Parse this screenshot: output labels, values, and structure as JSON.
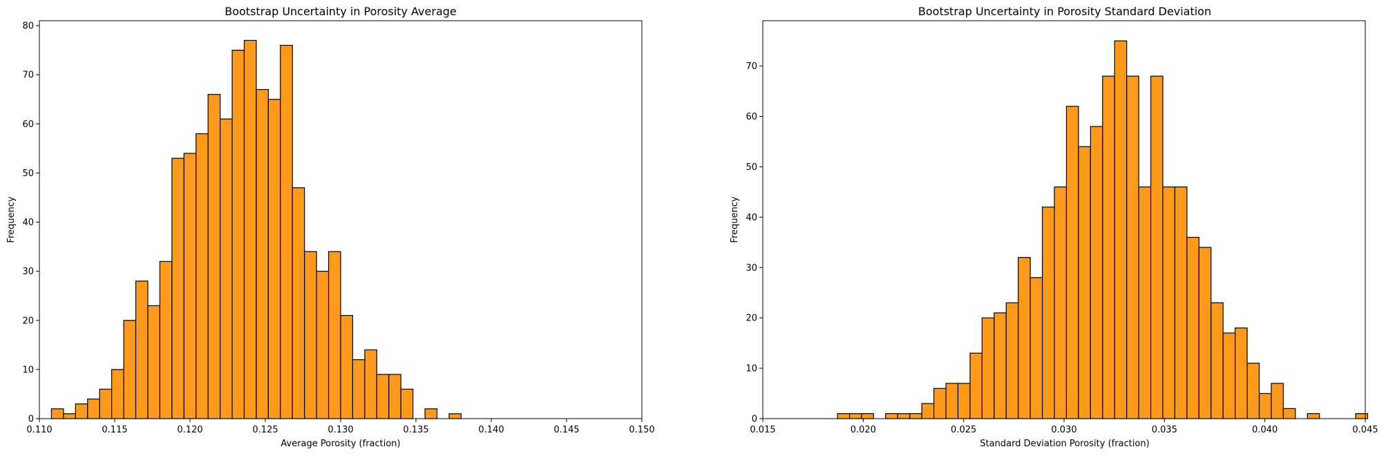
{
  "chart_data": [
    {
      "type": "bar",
      "title": "Bootstrap Uncertainty in Porosity Average",
      "xlabel": "Average Porosity (fraction)",
      "ylabel": "Frequency",
      "xlim": [
        0.11,
        0.15
      ],
      "ylim": [
        0,
        81
      ],
      "xticks": [
        "0.110",
        "0.115",
        "0.120",
        "0.125",
        "0.130",
        "0.135",
        "0.140",
        "0.145",
        "0.150"
      ],
      "xtick_values": [
        0.11,
        0.115,
        0.12,
        0.125,
        0.13,
        0.135,
        0.14,
        0.145,
        0.15
      ],
      "yticks": [
        "0",
        "10",
        "20",
        "30",
        "40",
        "50",
        "60",
        "70",
        "80"
      ],
      "ytick_values": [
        0,
        10,
        20,
        30,
        40,
        50,
        60,
        70,
        80
      ],
      "bar_color": "#fd9a1c",
      "edge_color": "#000000",
      "bins_start": 0.1108,
      "bin_width": 0.0008,
      "values": [
        2,
        1,
        3,
        4,
        6,
        10,
        20,
        28,
        23,
        32,
        53,
        54,
        58,
        66,
        61,
        75,
        77,
        67,
        65,
        76,
        47,
        34,
        30,
        34,
        21,
        12,
        14,
        9,
        9,
        6,
        0,
        2,
        0,
        1
      ]
    },
    {
      "type": "bar",
      "title": "Bootstrap Uncertainty in Porosity Standard Deviation",
      "xlabel": "Standard Deviation Porosity (fraction)",
      "ylabel": "Frequency",
      "xlim": [
        0.015,
        0.045
      ],
      "ylim": [
        0,
        79
      ],
      "xticks": [
        "0.015",
        "0.020",
        "0.025",
        "0.030",
        "0.035",
        "0.040",
        "0.045"
      ],
      "xtick_values": [
        0.015,
        0.02,
        0.025,
        0.03,
        0.035,
        0.04,
        0.045
      ],
      "yticks": [
        "0",
        "10",
        "20",
        "30",
        "40",
        "50",
        "60",
        "70"
      ],
      "ytick_values": [
        0,
        10,
        20,
        30,
        40,
        50,
        60,
        70
      ],
      "bar_color": "#fd9a1c",
      "edge_color": "#000000",
      "bins_start": 0.01872,
      "bin_width": 0.0006,
      "values": [
        1,
        1,
        1,
        0,
        1,
        1,
        1,
        3,
        6,
        7,
        7,
        13,
        20,
        21,
        23,
        32,
        28,
        42,
        46,
        62,
        54,
        58,
        68,
        75,
        68,
        46,
        68,
        46,
        46,
        36,
        34,
        23,
        17,
        18,
        11,
        5,
        7,
        2,
        0,
        1,
        0,
        0,
        0,
        1
      ]
    }
  ]
}
